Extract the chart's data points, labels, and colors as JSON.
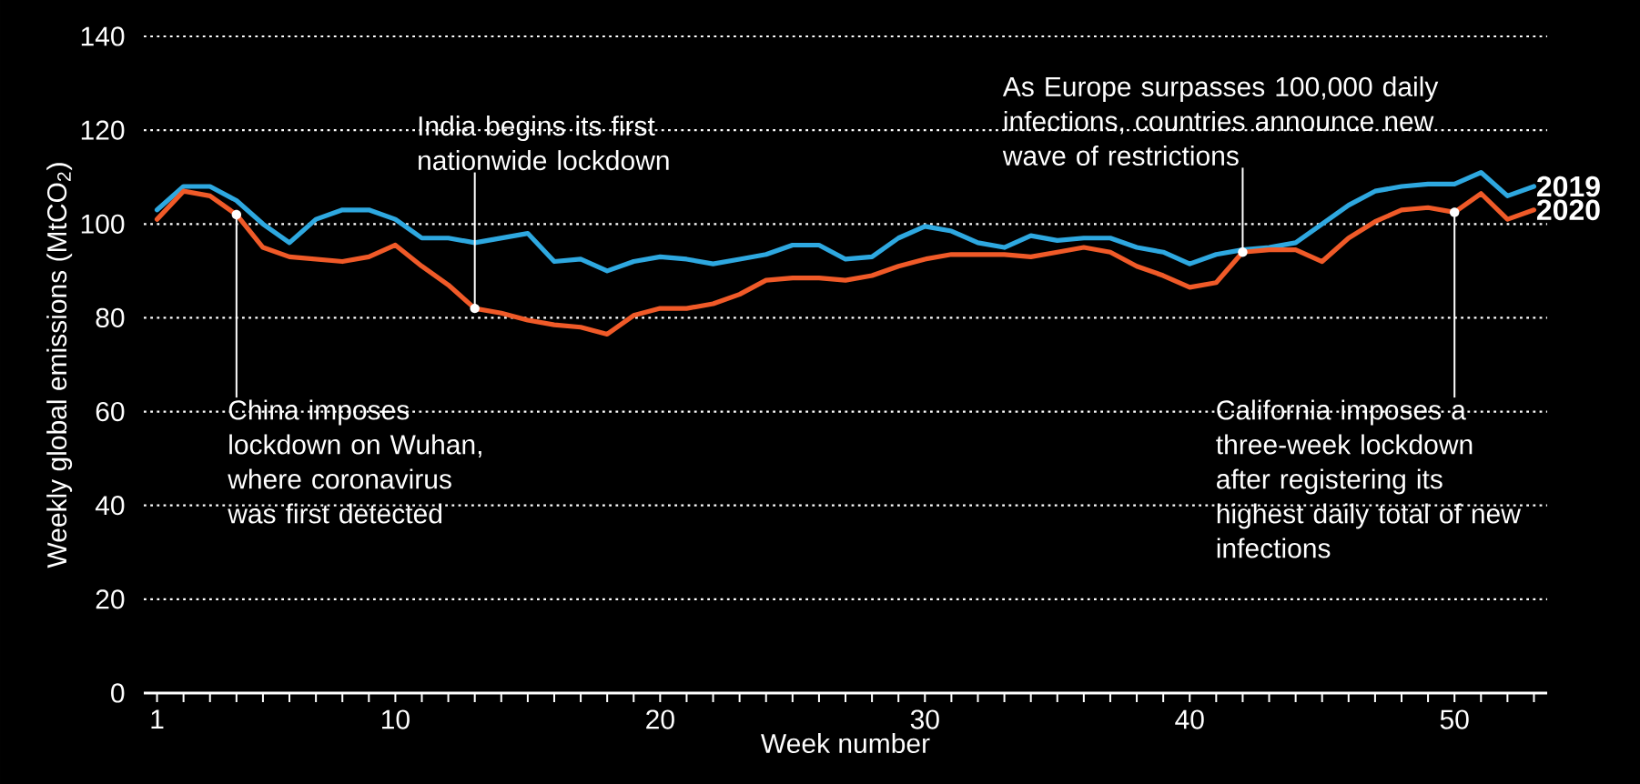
{
  "chart_data": {
    "type": "line",
    "xlabel": "Week number",
    "ylabel": "Weekly global emissions (MtCO$_{2}$)",
    "x": [
      1,
      2,
      3,
      4,
      5,
      6,
      7,
      8,
      9,
      10,
      11,
      12,
      13,
      14,
      15,
      16,
      17,
      18,
      19,
      20,
      21,
      22,
      23,
      24,
      25,
      26,
      27,
      28,
      29,
      30,
      31,
      32,
      33,
      34,
      35,
      36,
      37,
      38,
      39,
      40,
      41,
      42,
      43,
      44,
      45,
      46,
      47,
      48,
      49,
      50,
      51,
      52,
      53
    ],
    "series": [
      {
        "name": "2019",
        "color": "#2ea8e0",
        "values": [
          103,
          108,
          108,
          105,
          100,
          96,
          101,
          103,
          103,
          101,
          97,
          97,
          96,
          97,
          98,
          92,
          92.5,
          90,
          92,
          93,
          92.5,
          91.5,
          92.5,
          93.5,
          95.5,
          95.5,
          92.5,
          93,
          97,
          99.5,
          98.5,
          96,
          95,
          97.5,
          96.5,
          97,
          97,
          95,
          94,
          91.5,
          93.5,
          94.5,
          95,
          96,
          100,
          104,
          107,
          108,
          108.5,
          108.5,
          111,
          106,
          108
        ]
      },
      {
        "name": "2020",
        "color": "#f05a28",
        "values": [
          101,
          107,
          106,
          102,
          95,
          93,
          92.5,
          92,
          93,
          95.5,
          91,
          87,
          82,
          81,
          79.5,
          78.5,
          78,
          76.5,
          80.5,
          82,
          82,
          83,
          85,
          88,
          88.5,
          88.5,
          88,
          89,
          91,
          92.5,
          93.5,
          93.5,
          93.5,
          93,
          94,
          95,
          94,
          91,
          89,
          86.5,
          87.5,
          94,
          94.5,
          94.5,
          92,
          97,
          100.5,
          103,
          103.5,
          102.5,
          106.5,
          101,
          103
        ]
      }
    ],
    "xlim": [
      0.5,
      53.5
    ],
    "ylim": [
      0,
      140
    ],
    "xticks": [
      1,
      {
        "value": 2,
        "label": null
      },
      {
        "value": 3,
        "label": null
      },
      {
        "value": 4,
        "label": null
      },
      {
        "value": 5,
        "label": null
      },
      {
        "value": 6,
        "label": null
      },
      {
        "value": 7,
        "label": null
      },
      {
        "value": 8,
        "label": null
      },
      {
        "value": 9,
        "label": null
      },
      10,
      {
        "value": 11,
        "label": null
      },
      {
        "value": 12,
        "label": null
      },
      {
        "value": 13,
        "label": null
      },
      {
        "value": 14,
        "label": null
      },
      {
        "value": 15,
        "label": null
      },
      {
        "value": 16,
        "label": null
      },
      {
        "value": 17,
        "label": null
      },
      {
        "value": 18,
        "label": null
      },
      {
        "value": 19,
        "label": null
      },
      20,
      {
        "value": 21,
        "label": null
      },
      {
        "value": 22,
        "label": null
      },
      {
        "value": 23,
        "label": null
      },
      {
        "value": 24,
        "label": null
      },
      {
        "value": 25,
        "label": null
      },
      {
        "value": 26,
        "label": null
      },
      {
        "value": 27,
        "label": null
      },
      {
        "value": 28,
        "label": null
      },
      {
        "value": 29,
        "label": null
      },
      30,
      {
        "value": 31,
        "label": null
      },
      {
        "value": 32,
        "label": null
      },
      {
        "value": 33,
        "label": null
      },
      {
        "value": 34,
        "label": null
      },
      {
        "value": 35,
        "label": null
      },
      {
        "value": 36,
        "label": null
      },
      {
        "value": 37,
        "label": null
      },
      {
        "value": 38,
        "label": null
      },
      {
        "value": 39,
        "label": null
      },
      40,
      {
        "value": 41,
        "label": null
      },
      {
        "value": 42,
        "label": null
      },
      {
        "value": 43,
        "label": null
      },
      {
        "value": 44,
        "label": null
      },
      {
        "value": 45,
        "label": null
      },
      {
        "value": 46,
        "label": null
      },
      {
        "value": 47,
        "label": null
      },
      {
        "value": 48,
        "label": null
      },
      {
        "value": 49,
        "label": null
      },
      50,
      {
        "value": 51,
        "label": null
      },
      {
        "value": 52,
        "label": null
      },
      {
        "value": 53,
        "label": null
      }
    ],
    "yticks": [
      0,
      20,
      40,
      60,
      80,
      100,
      120,
      140
    ],
    "grid": "y",
    "legend": false,
    "marker": "none",
    "line_style": "solid",
    "annotations": [
      {
        "text": "China imposes lockdown on Wuhan, where coronavirus was first detected",
        "x": 4,
        "y": 102
      },
      {
        "text": "India begins its first nationwide lockdown",
        "x": 13,
        "y": 82
      },
      {
        "text": "As Europe surpasses 100,000 daily infections, countries announce new wave of restrictions",
        "x": 42,
        "y": 94
      },
      {
        "text": "California imposes a three-week lockdown after registering its highest daily total of new infections",
        "x": 50,
        "y": 102.5
      }
    ]
  }
}
